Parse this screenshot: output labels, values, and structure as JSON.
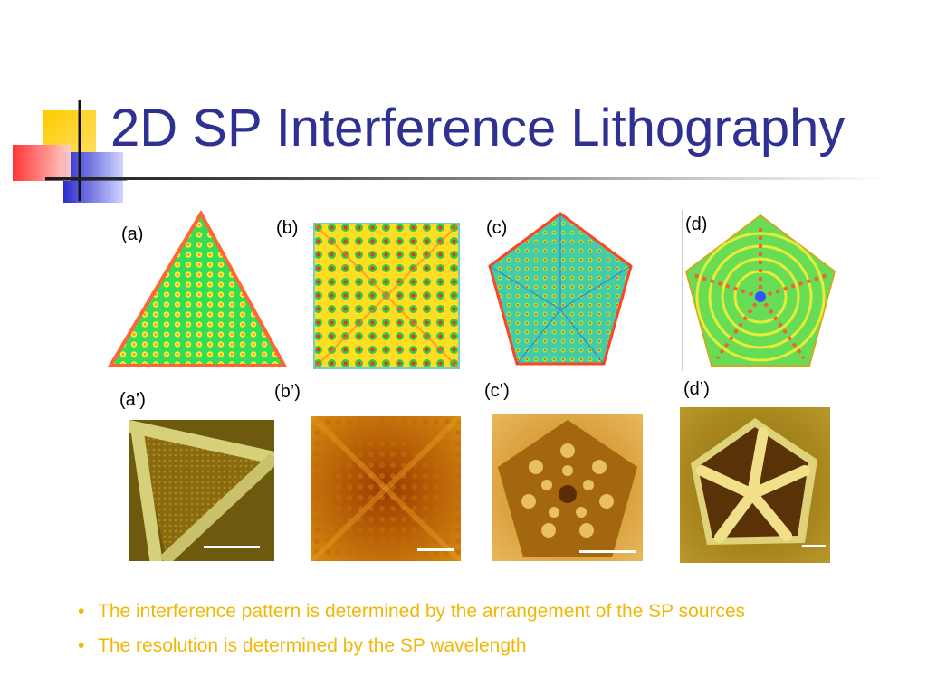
{
  "title": "2D SP Interference Lithography",
  "panels": {
    "top": [
      {
        "label": "(a)",
        "shape": "triangle"
      },
      {
        "label": "(b)",
        "shape": "square"
      },
      {
        "label": "(c)",
        "shape": "pentagon"
      },
      {
        "label": "(d)",
        "shape": "pentagon-rings"
      }
    ],
    "bottom": [
      {
        "label": "(a’)",
        "shape": "afm-triangle"
      },
      {
        "label": "(b’)",
        "shape": "afm-square"
      },
      {
        "label": "(c’)",
        "shape": "afm-pentagon"
      },
      {
        "label": "(d’)",
        "shape": "afm-pentagon-star"
      }
    ]
  },
  "bullets": [
    "The interference pattern is determined by the arrangement of the SP sources",
    "The resolution is determined by the SP wavelength"
  ],
  "colors": {
    "title": "#2e3192",
    "bullet_text": "#f2b705",
    "deco_yellow": "#ffcc00",
    "deco_blue": "#3333cc",
    "deco_red": "#ff3b3b"
  }
}
